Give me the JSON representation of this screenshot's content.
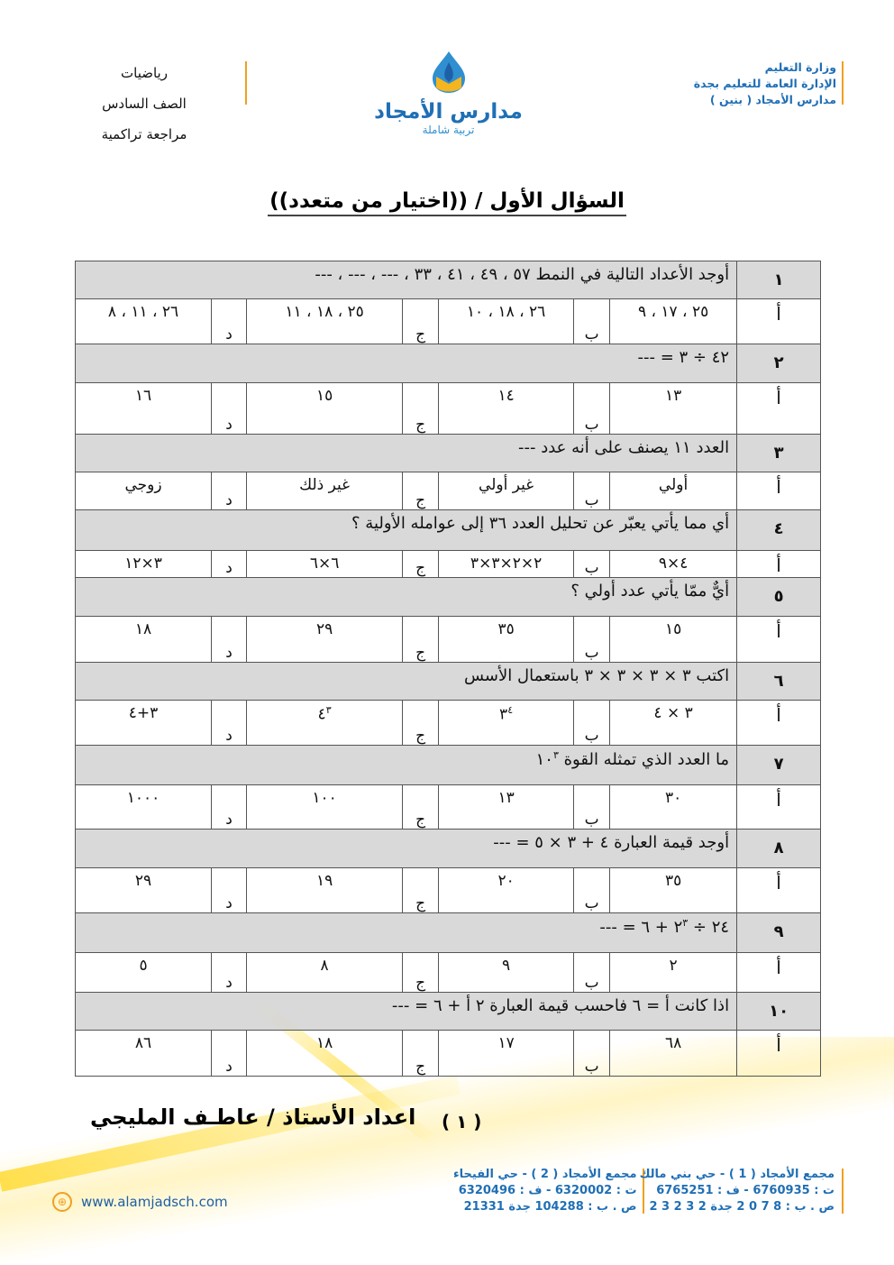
{
  "header": {
    "subject": "رياضيات",
    "grade": "الصف السادس",
    "type": "مراجعة تراكمية",
    "school_name": "مدارس الأمجاد",
    "school_tagline": "تربية شاملة",
    "ministry": [
      "وزارة التعليم",
      "الإدارة العامة للتعليم بجدة",
      "مدارس الأمجاد ( بنين )"
    ],
    "accent_color": "#1f6fb5",
    "line_color": "#f0a020"
  },
  "title": "السؤال الأول / ((اختيار من متعدد))",
  "option_labels": [
    "أ",
    "ب",
    "ج",
    "د"
  ],
  "questions": [
    {
      "num": "١",
      "text": "أوجد الأعداد التالية في النمط ٥٧ ، ٤٩ ، ٤١ ، ٣٣ ، --- ، --- ، ---",
      "options": [
        {
          "t": "٢٥ ، ١٧ ، ٩"
        },
        {
          "t": "٢٦ ، ١٨ ، ١٠"
        },
        {
          "t": "٢٥ ، ١٨ ، ١١"
        },
        {
          "t": "٢٦ ، ١١ ، ٨"
        }
      ]
    },
    {
      "num": "٢",
      "text": "٤٢ ÷ ٣ = ---",
      "options": [
        {
          "t": "١٣"
        },
        {
          "t": "١٤"
        },
        {
          "t": "١٥"
        },
        {
          "t": "١٦"
        }
      ]
    },
    {
      "num": "٣",
      "text": "العدد ١١ يصنف على أنه عدد ---",
      "options": [
        {
          "t": "أولي"
        },
        {
          "t": "غير أولي"
        },
        {
          "t": "غير ذلك"
        },
        {
          "t": "زوجي"
        }
      ]
    },
    {
      "num": "٤",
      "text": "أي مما يأتي يعبّر عن تحليل العدد ٣٦ إلى عوامله الأولية ؟",
      "options": [
        {
          "t": "٤×٩"
        },
        {
          "t": "٢×٢×٣×٣"
        },
        {
          "t": "٦×٦"
        },
        {
          "t": "٣×١٢"
        }
      ]
    },
    {
      "num": "٥",
      "text": "أيٌّ ممّا يأتي عدد أولي ؟",
      "options": [
        {
          "t": "١٥"
        },
        {
          "t": "٣٥"
        },
        {
          "t": "٢٩"
        },
        {
          "t": "١٨"
        }
      ]
    },
    {
      "num": "٦",
      "text": "اكتب ٣ × ٣ × ٣ × ٣ باستعمال الأسس",
      "options": [
        {
          "t": "٣ × ٤"
        },
        {
          "t": "٣",
          "sup": "٤"
        },
        {
          "t": "٤",
          "sup": "٣"
        },
        {
          "t": "٣+٤"
        }
      ]
    },
    {
      "num": "٧",
      "text": "ما العدد الذي تمثله القوة ١٠",
      "sup": "٣",
      "options": [
        {
          "t": "٣٠"
        },
        {
          "t": "١٣"
        },
        {
          "t": "١٠٠"
        },
        {
          "t": "١٠٠٠"
        }
      ]
    },
    {
      "num": "٨",
      "text": "أوجد قيمة العبارة ٤ + ٣ × ٥ = ---",
      "options": [
        {
          "t": "٣٥"
        },
        {
          "t": "٢٠"
        },
        {
          "t": "١٩"
        },
        {
          "t": "٢٩"
        }
      ]
    },
    {
      "num": "٩",
      "text": "٢٤ ÷ ٢",
      "sup": "٣",
      "after": " + ٦ = ---",
      "options": [
        {
          "t": "٢"
        },
        {
          "t": "٩"
        },
        {
          "t": "٨"
        },
        {
          "t": "٥"
        }
      ]
    },
    {
      "num": "١٠",
      "text": "اذا كانت أ = ٦ فاحسب قيمة العبارة ٢ أ + ٦ = ---",
      "options": [
        {
          "t": "٦٨"
        },
        {
          "t": "١٧"
        },
        {
          "t": "١٨"
        },
        {
          "t": "٨٦"
        }
      ]
    }
  ],
  "footer": {
    "author": "اعداد الأستاذ / عاطـف المليجي",
    "page": "( ١ )",
    "website": "www.alamjadsch.com",
    "branch1": [
      "مجمع الأمجاد ( 1 ) - حي بني مالك",
      "ت : 6760935 - ف : 6765251",
      "ص . ب : 8 7 0 2 جدة 2 3 2 3 2"
    ],
    "branch2": [
      "مجمع الأمجاد ( 2 ) - حي الفيحاء",
      "ت : 6320002 - ف : 6320496",
      "ص . ب : 104288 جدة 21331"
    ]
  }
}
